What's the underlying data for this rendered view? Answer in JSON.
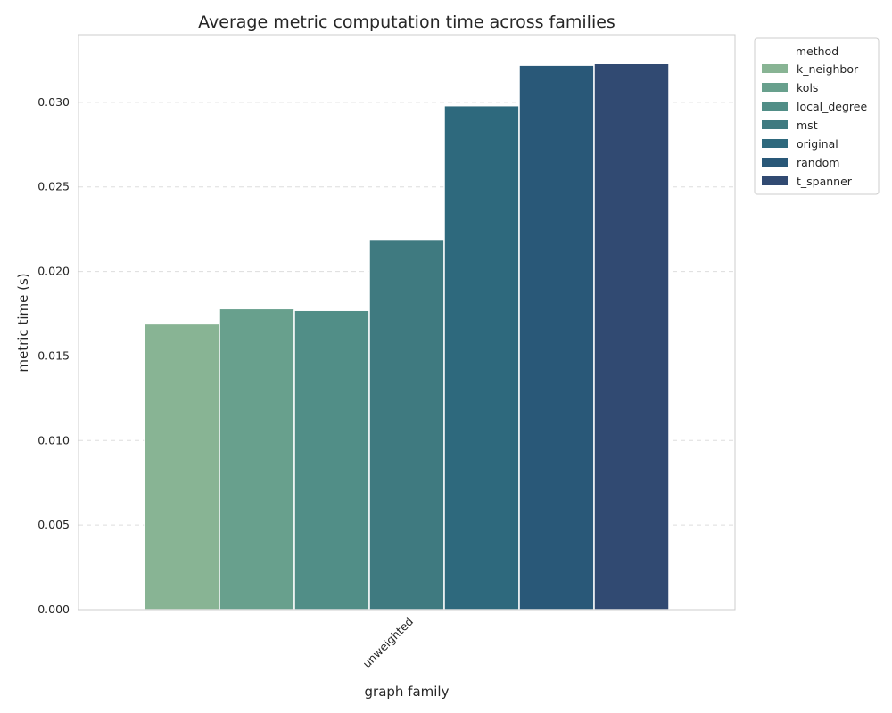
{
  "chart_data": {
    "type": "bar",
    "title": "Average metric computation time across families",
    "xlabel": "graph family",
    "ylabel": "metric time (s)",
    "categories": [
      "unweighted"
    ],
    "ylim": [
      0,
      0.034
    ],
    "yticks": [
      "0.000",
      "0.005",
      "0.010",
      "0.015",
      "0.020",
      "0.025",
      "0.030"
    ],
    "grid": "y-dashed",
    "legend": {
      "title": "method",
      "placement": "outside-top-right"
    },
    "series": [
      {
        "name": "k_neighbor",
        "values": [
          0.0169
        ],
        "color": "#88b494"
      },
      {
        "name": "kols",
        "values": [
          0.0178
        ],
        "color": "#68a08d"
      },
      {
        "name": "local_degree",
        "values": [
          0.0177
        ],
        "color": "#518e87"
      },
      {
        "name": "mst",
        "values": [
          0.0219
        ],
        "color": "#3f7a80"
      },
      {
        "name": "original",
        "values": [
          0.0298
        ],
        "color": "#2e697d"
      },
      {
        "name": "random",
        "values": [
          0.0322
        ],
        "color": "#295878"
      },
      {
        "name": "t_spanner",
        "values": [
          0.0323
        ],
        "color": "#314a72"
      }
    ]
  }
}
